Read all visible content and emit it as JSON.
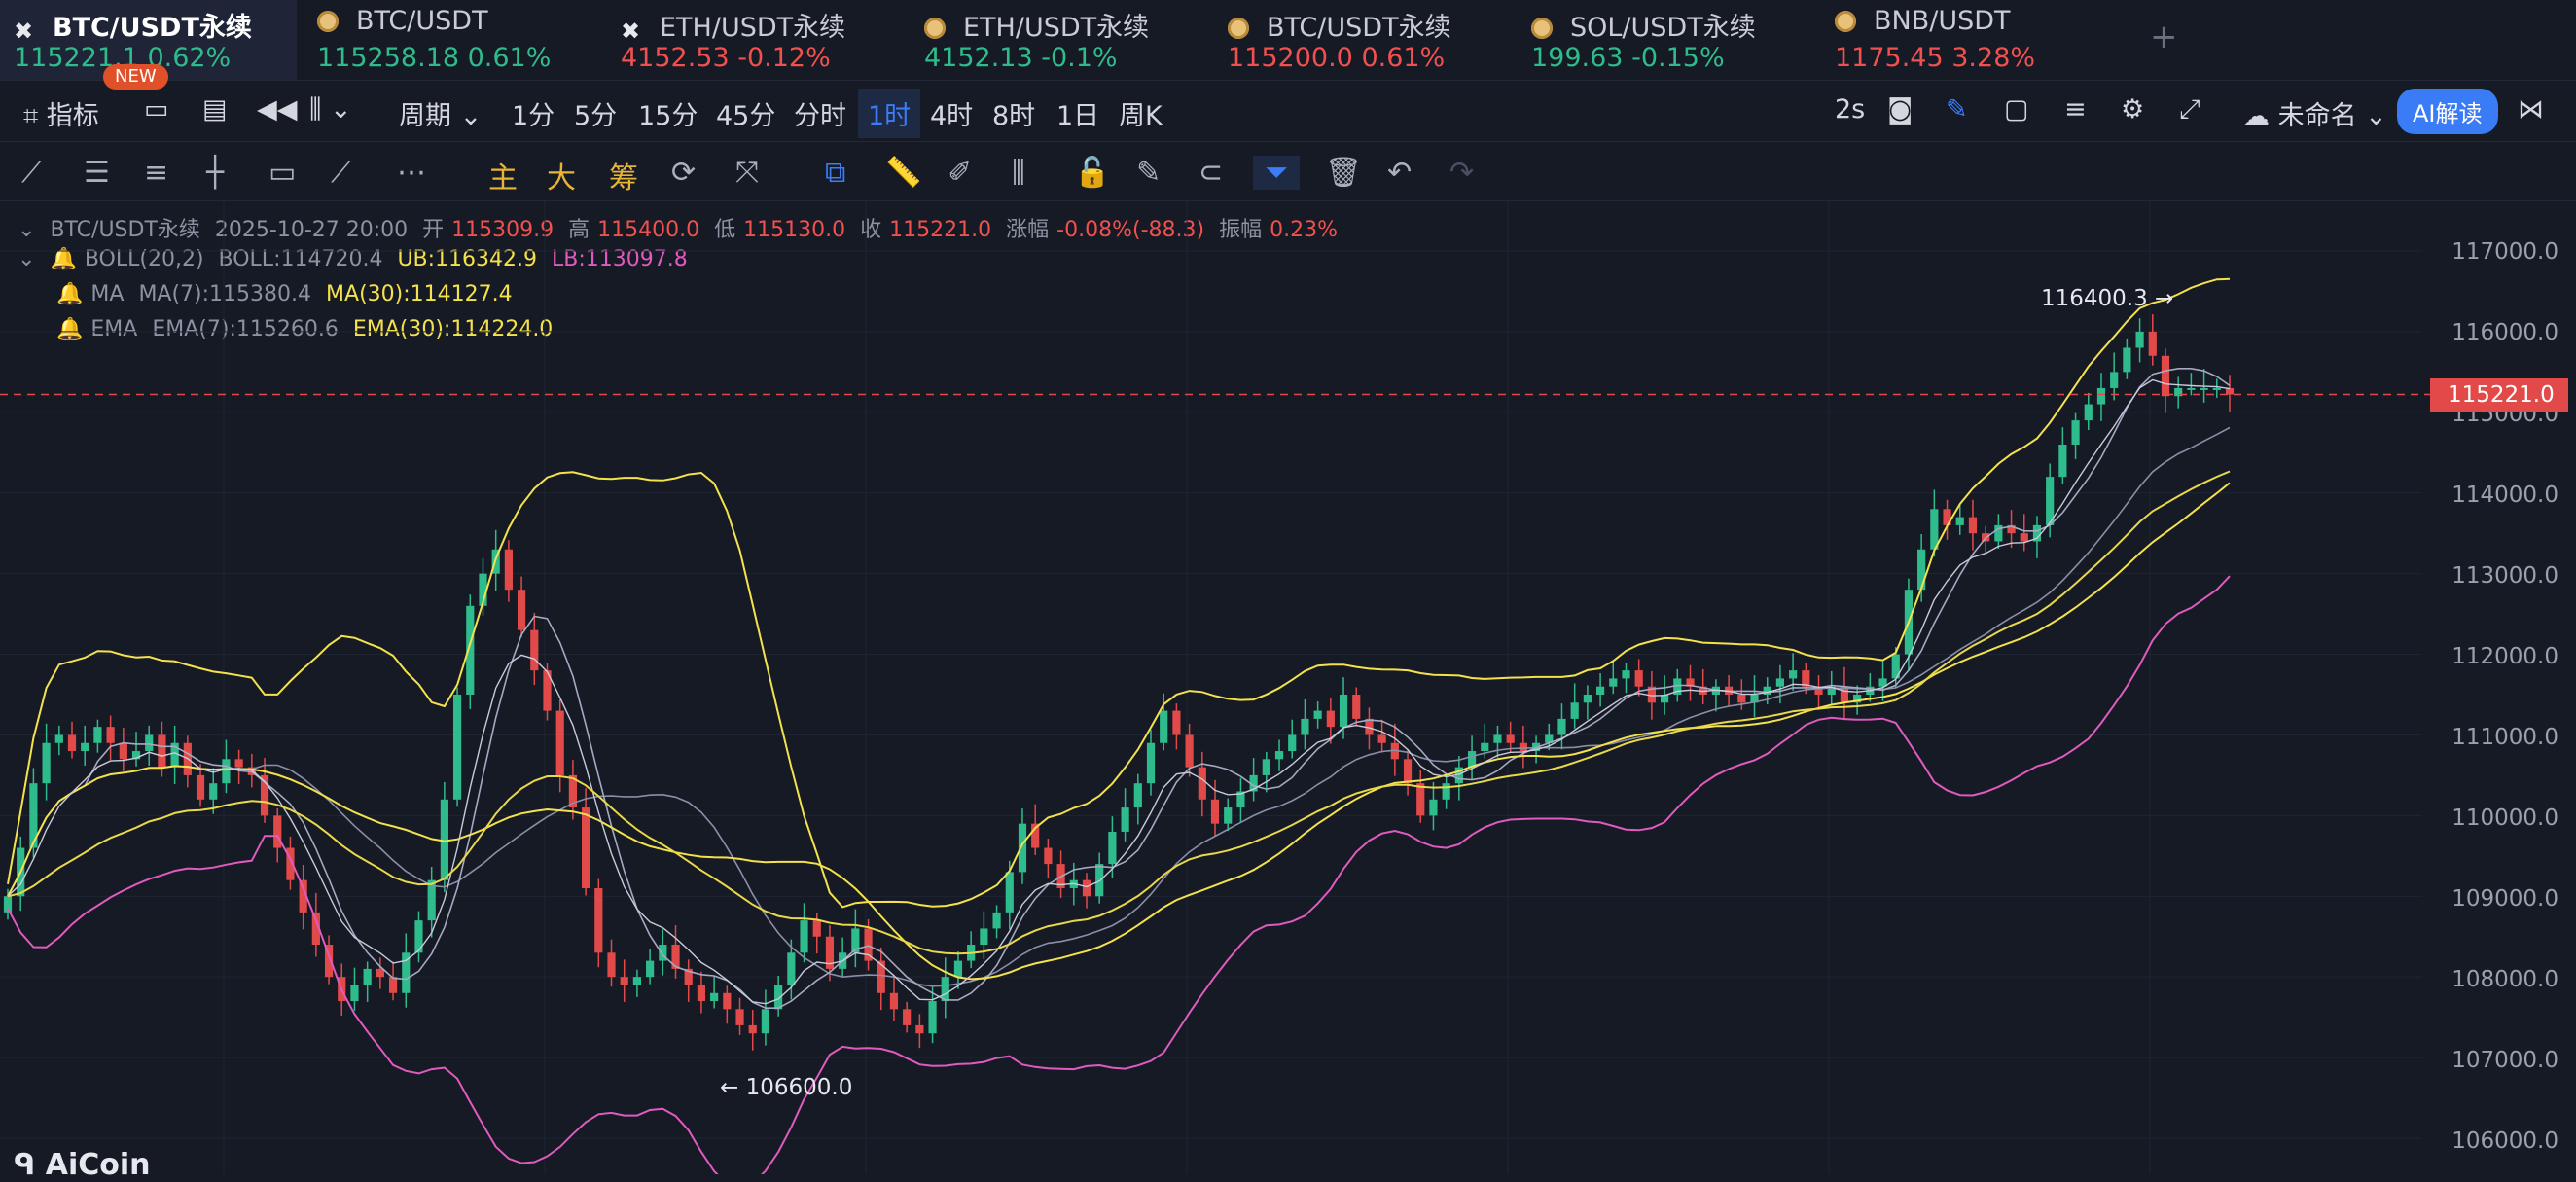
{
  "tabs": [
    {
      "symbol": "BTC/USDT永续",
      "price": "115221.1",
      "change": "0.62%",
      "dir": "up",
      "active": true,
      "icon": "exchange-x-icon"
    },
    {
      "symbol": "BTC/USDT",
      "price": "115258.18",
      "change": "0.61%",
      "dir": "up",
      "icon": "coin-icon"
    },
    {
      "symbol": "ETH/USDT永续",
      "price": "4152.53",
      "change": "-0.12%",
      "dir": "dn",
      "icon": "exchange-x-icon"
    },
    {
      "symbol": "ETH/USDT永续",
      "price": "4152.13",
      "change": "-0.1%",
      "dir": "up",
      "icon": "coin-icon"
    },
    {
      "symbol": "BTC/USDT永续",
      "price": "115200.0",
      "change": "0.61%",
      "dir": "dn",
      "icon": "coin-icon"
    },
    {
      "symbol": "SOL/USDT永续",
      "price": "199.63",
      "change": "-0.15%",
      "dir": "up",
      "icon": "coin-icon"
    },
    {
      "symbol": "BNB/USDT",
      "price": "1175.45",
      "change": "3.28%",
      "dir": "dn",
      "icon": "coin-icon"
    }
  ],
  "new_badge": "NEW",
  "toolbar": {
    "indicators": "指标",
    "period": "周期",
    "intervals": [
      "1分",
      "5分",
      "15分",
      "45分",
      "分时",
      "1时",
      "4时",
      "8时",
      "1日",
      "周K"
    ],
    "selected_interval": "1时",
    "refresh": "2s",
    "layout_name": "未命名",
    "ai_button": "AI解读"
  },
  "drawbar": {
    "main": "主",
    "big": "大",
    "chip": "筹"
  },
  "info": {
    "symbol": "BTC/USDT永续",
    "datetime": "2025-10-27 20:00",
    "open_label": "开",
    "open": "115309.9",
    "high_label": "高",
    "high": "115400.0",
    "low_label": "低",
    "low": "115130.0",
    "close_label": "收",
    "close": "115221.0",
    "change_label": "涨幅",
    "change": "-0.08%(-88.3)",
    "amp_label": "振幅",
    "amp": "0.23%"
  },
  "indicators": {
    "boll": {
      "name": "BOLL(20,2)",
      "mid": "BOLL:114720.4",
      "ub": "UB:116342.9",
      "lb": "LB:113097.8"
    },
    "ma": {
      "name": "MA",
      "ma7": "MA(7):115380.4",
      "ma30": "MA(30):114127.4"
    },
    "ema": {
      "name": "EMA",
      "ema7": "EMA(7):115260.6",
      "ema30": "EMA(30):114224.0"
    }
  },
  "chart_data": {
    "type": "candlestick",
    "y_ticks": [
      "117000.0",
      "116000.0",
      "115000.0",
      "114000.0",
      "113000.0",
      "112000.0",
      "111000.0",
      "110000.0",
      "109000.0",
      "108000.0",
      "107000.0",
      "106000.0"
    ],
    "ylim": [
      105800,
      117300
    ],
    "last_price": "115221.0",
    "annotations": {
      "high": "116400.3",
      "low": "106600.0"
    },
    "closes": [
      109000,
      109600,
      110400,
      110900,
      111000,
      110800,
      110900,
      111100,
      110900,
      110700,
      110800,
      111000,
      110600,
      110900,
      110500,
      110200,
      110400,
      110700,
      110600,
      110500,
      110000,
      109600,
      109200,
      108800,
      108400,
      108000,
      107700,
      107900,
      108100,
      108000,
      107800,
      108300,
      108700,
      109200,
      110200,
      111500,
      112600,
      113000,
      113300,
      112800,
      112300,
      111800,
      111300,
      110500,
      110100,
      109100,
      108300,
      108000,
      107900,
      108000,
      108200,
      108400,
      108100,
      107900,
      107700,
      107800,
      107600,
      107400,
      107300,
      107600,
      107900,
      108300,
      108700,
      108500,
      108100,
      108300,
      108600,
      108200,
      107800,
      107600,
      107400,
      107300,
      107700,
      108000,
      108200,
      108400,
      108600,
      108800,
      109300,
      109900,
      109600,
      109400,
      109100,
      109200,
      109000,
      109400,
      109800,
      110100,
      110400,
      110900,
      111300,
      111000,
      110600,
      110200,
      109900,
      110100,
      110300,
      110500,
      110700,
      110800,
      111000,
      111200,
      111300,
      111100,
      111500,
      111200,
      111000,
      110900,
      110700,
      110400,
      110000,
      110200,
      110400,
      110600,
      110800,
      110900,
      111000,
      110900,
      110800,
      110900,
      111000,
      111200,
      111400,
      111500,
      111600,
      111700,
      111800,
      111600,
      111400,
      111500,
      111700,
      111600,
      111500,
      111600,
      111500,
      111400,
      111500,
      111600,
      111700,
      111800,
      111600,
      111500,
      111600,
      111400,
      111500,
      111600,
      111700,
      112000,
      112800,
      113300,
      113800,
      113600,
      113700,
      113500,
      113400,
      113600,
      113500,
      113400,
      113600,
      114200,
      114600,
      114900,
      115100,
      115300,
      115500,
      115800,
      116000,
      115700,
      115200,
      115300,
      115300,
      115300,
      115300,
      115221
    ]
  }
}
